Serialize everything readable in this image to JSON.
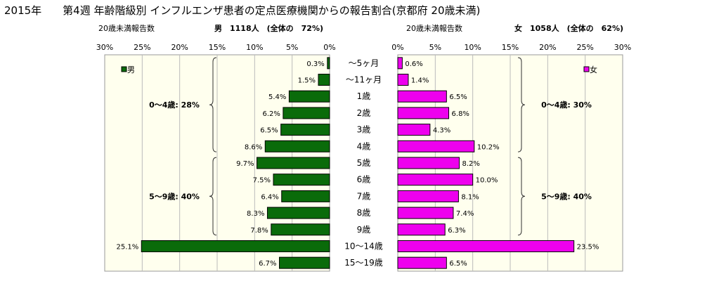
{
  "title": "2015年　　第4週 年齢階級別 インフルエンザ患者の定点医療機関からの報告割合(京都府 20歳未満)",
  "header": {
    "left_caption": "20歳未満報告数",
    "left_summary": "男　1118人　(全体の　72%)",
    "right_caption": "20歳未満報告数",
    "right_summary": "女　1058人　(全体の　62%)"
  },
  "chart_data": {
    "type": "bar",
    "categories": [
      "～5ヶ月",
      "～11ヶ月",
      "1歳",
      "2歳",
      "3歳",
      "4歳",
      "5歳",
      "6歳",
      "7歳",
      "8歳",
      "9歳",
      "10～14歳",
      "15～19歳"
    ],
    "series": [
      {
        "name": "男",
        "values": [
          0.3,
          1.5,
          5.4,
          6.2,
          6.5,
          8.6,
          9.7,
          7.5,
          6.4,
          8.3,
          7.8,
          25.1,
          6.7
        ],
        "color": "#0a6b0a"
      },
      {
        "name": "女",
        "values": [
          0.6,
          1.4,
          6.5,
          6.8,
          4.3,
          10.2,
          8.2,
          10.0,
          8.1,
          7.4,
          6.3,
          23.5,
          6.5
        ],
        "color": "#ee00ee"
      }
    ],
    "value_labels_male": [
      "0.3%",
      "1.5%",
      "5.4%",
      "6.2%",
      "6.5%",
      "8.6%",
      "9.7%",
      "7.5%",
      "6.4%",
      "8.3%",
      "7.8%",
      "25.1%",
      "6.7%"
    ],
    "value_labels_female": [
      "0.6%",
      "1.4%",
      "6.5%",
      "6.8%",
      "4.3%",
      "10.2%",
      "8.2%",
      "10.0%",
      "8.1%",
      "7.4%",
      "6.3%",
      "23.5%",
      "6.5%"
    ],
    "xlim": [
      0,
      30
    ],
    "male_ticks": [
      "30%",
      "25%",
      "20%",
      "15%",
      "10%",
      "5%",
      "0%"
    ],
    "female_ticks": [
      "0%",
      "5%",
      "10%",
      "15%",
      "20%",
      "25%",
      "30%"
    ],
    "legend_male": "男",
    "legend_female": "女",
    "groups_male": [
      "0～4歳: 28%",
      "5～9歳: 40%"
    ],
    "groups_female": [
      "0～4歳: 30%",
      "5～9歳: 40%"
    ],
    "plot_background": "#ffffee"
  }
}
